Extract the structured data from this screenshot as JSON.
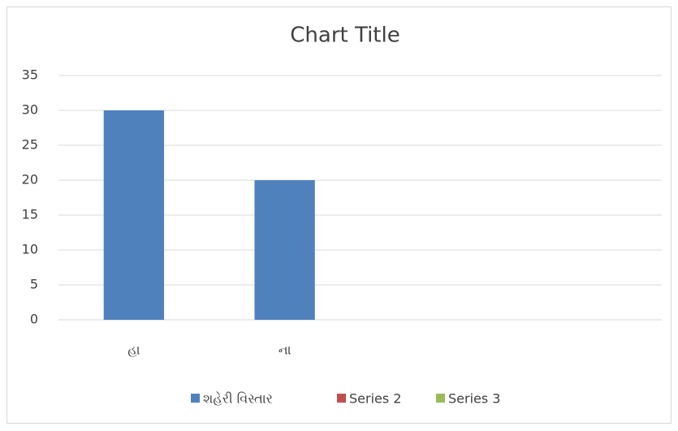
{
  "chart_data": {
    "type": "bar",
    "title": "Chart Title",
    "categories": [
      "હા",
      "ના",
      null,
      null
    ],
    "series": [
      {
        "name": "શહેરી વિસ્તાર",
        "color": "#4f81bd",
        "values": [
          30,
          20,
          null,
          null
        ]
      },
      {
        "name": "Series 2",
        "color": "#c0504d",
        "values": [
          null,
          null,
          null,
          null
        ]
      },
      {
        "name": "Series 3",
        "color": "#9bbb59",
        "values": [
          null,
          null,
          null,
          null
        ]
      }
    ],
    "ylim": [
      0,
      35
    ],
    "yticks": [
      0,
      5,
      10,
      15,
      20,
      25,
      30,
      35
    ],
    "grid": true,
    "legend": "bottom"
  }
}
